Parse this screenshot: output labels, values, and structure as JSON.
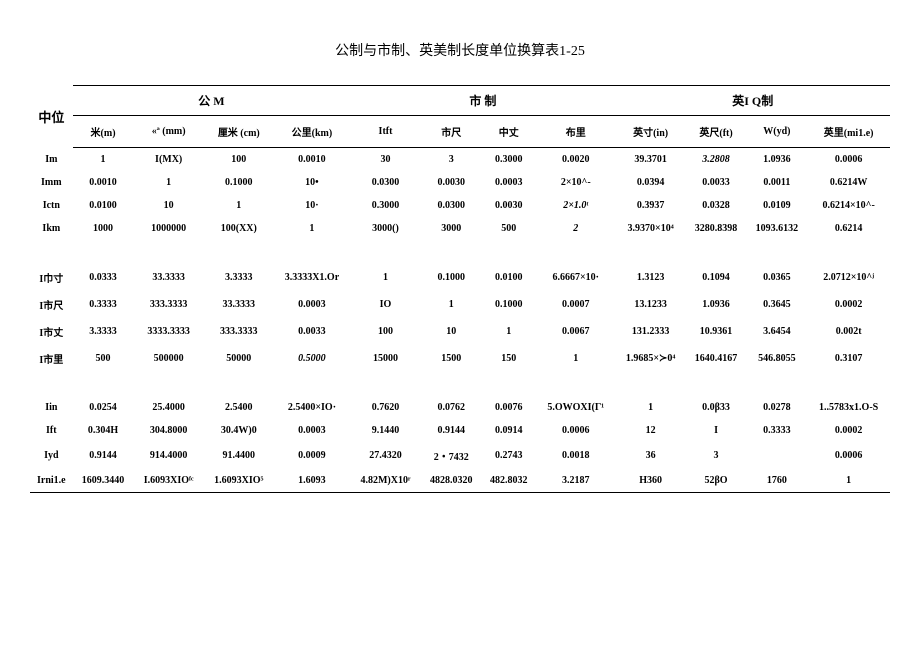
{
  "title": "公制与市制、英美制长度单位换算表1-25",
  "unit_label": "中位",
  "sections": {
    "metric": "公      M",
    "chinese": "市      制",
    "english": "英I       Q制"
  },
  "cols": {
    "m": "米(m)",
    "mm": "«ª\n(mm)",
    "cm": "厘米\n(cm)",
    "km": "公里(km)",
    "itft": "Itft",
    "shichi": "市尺",
    "zhang": "中丈",
    "buli": "布里",
    "in": "英寸(in)",
    "ft": "英尺(ft)",
    "yd": "W(yd)",
    "mile": "英里(mi1.e)"
  },
  "rows": [
    {
      "lbl": "Im",
      "v": [
        "1",
        "I(MX)",
        "100",
        "0.0010",
        "30",
        "3",
        "0.3000",
        "0.0020",
        "39.3701",
        "3.2808",
        "1.0936",
        "0.0006"
      ]
    },
    {
      "lbl": "Imm",
      "v": [
        "0.0010",
        "1",
        "0.1000",
        "10•",
        "0.0300",
        "0.0030",
        "0.0003",
        "2×10^-",
        "0.0394",
        "0.0033",
        "0.0011",
        "0.6214W"
      ]
    },
    {
      "lbl": "Ictn",
      "v": [
        "0.0100",
        "10",
        "1",
        "10·",
        "0.3000",
        "0.0300",
        "0.0030",
        "2×1.0ᵗ",
        "0.3937",
        "0.0328",
        "0.0109",
        "0.6214×10^-"
      ]
    },
    {
      "lbl": "Ikm",
      "v": [
        "1000",
        "1000000",
        "100(XX)",
        "1",
        "3000()",
        "3000",
        "500",
        "2",
        "3.9370×10⁴",
        "3280.8398",
        "1093.6132",
        "0.6214"
      ]
    },
    {
      "lbl": "I巾寸",
      "v": [
        "0.0333",
        "33.3333",
        "3.3333",
        "3.3333X1.Or",
        "1",
        "0.1000",
        "0.0100",
        "6.6667×10·",
        "1.3123",
        "0.1094",
        "0.0365",
        "2.0712×10^ʲ"
      ]
    },
    {
      "lbl": "I市尺",
      "v": [
        "0.3333",
        "333.3333",
        "33.3333",
        "0.0003",
        "IO",
        "1",
        "0.1000",
        "0.0007",
        "13.1233",
        "1.0936",
        "0.3645",
        "0.0002"
      ]
    },
    {
      "lbl": "I市丈",
      "v": [
        "3.3333",
        "3333.3333",
        "333.3333",
        "0.0033",
        "100",
        "10",
        "1",
        "0.0067",
        "131.2333",
        "10.9361",
        "3.6454",
        "0.002t"
      ]
    },
    {
      "lbl": "I市里",
      "v": [
        "500",
        "500000",
        "50000",
        "0.5000",
        "15000",
        "1500",
        "150",
        "1",
        "1.9685×≻0⁴",
        "1640.4167",
        "546.8055",
        "0.3107"
      ]
    },
    {
      "lbl": "Iin",
      "v": [
        "0.0254",
        "25.4000",
        "2.5400",
        "2.5400×IO·",
        "0.7620",
        "0.0762",
        "0.0076",
        "5.OWOXI(Γ¹",
        "1",
        "0.0β33",
        "0.0278",
        "1..5783x1.O-S"
      ]
    },
    {
      "lbl": "Ift",
      "v": [
        "0.304H",
        "304.8000",
        "30.4W)0",
        "0.0003",
        "9.1440",
        "0.9144",
        "0.0914",
        "0.0006",
        "12",
        "I",
        "0.3333",
        "0.0002"
      ]
    },
    {
      "lbl": "Iyd",
      "v": [
        "0.9144",
        "914.4000",
        "91.4400",
        "0.0009",
        "27.4320",
        "2・7432",
        "0.2743",
        "0.0018",
        "36",
        "3",
        "",
        "0.0006"
      ]
    },
    {
      "lbl": "Irni1.e",
      "v": [
        "1609.3440",
        "I.6093XIOᶠᶜ",
        "1.6093XIO⁵",
        "1.6093",
        "4.82M)X10ʳ",
        "4828.0320",
        "482.8032",
        "3.2187",
        "H360",
        "52βO",
        "1760",
        "1"
      ]
    }
  ],
  "styling": {
    "background": "#ffffff",
    "text_color": "#000000",
    "border_color": "#000000",
    "title_fontsize": 14,
    "header_fontsize": 12,
    "cell_fontsize": 10
  }
}
